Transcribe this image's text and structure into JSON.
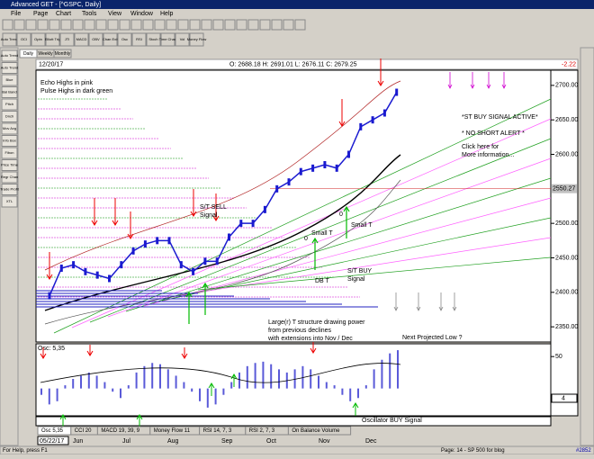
{
  "window": {
    "title": "Advanced GET - [^GSPC, Daily]"
  },
  "menu": [
    "File",
    "Page",
    "Chart",
    "Tools",
    "View",
    "Window",
    "Help"
  ],
  "toolbar": [
    "Auto Trend",
    "OCI",
    "Optn",
    "Elliott Trig",
    "JTI",
    "MACD",
    "OBV",
    "Chan Exit",
    "Osc",
    "RSI",
    "Stoch",
    "Time Chart",
    "Vol",
    "Money Flow"
  ],
  "palette": [
    "Auto Trend",
    "Auto Trend",
    "Blue",
    "Bal Band",
    "Pitch",
    "Dnch",
    "Mov Avg",
    "Info Box",
    "Fibon",
    "Price Time",
    "Regr Chan",
    "Trade Profit",
    "XTL"
  ],
  "period_tabs": [
    "Daily",
    "Weekly",
    "Monthly"
  ],
  "info": {
    "date": "12/20/17",
    "ohlc": "O: 2688.18   H: 2691.01   L: 2676.11   C: 2679.25",
    "change": "-2.22"
  },
  "chart_data": {
    "type": "line",
    "color": "#1a1ad0",
    "values": [
      2395,
      2435,
      2440,
      2430,
      2425,
      2420,
      2440,
      2460,
      2470,
      2475,
      2475,
      2440,
      2430,
      2445,
      2445,
      2480,
      2500,
      2500,
      2520,
      2550,
      2560,
      2575,
      2580,
      2585,
      2580,
      2600,
      2640,
      2650,
      2660,
      2690
    ],
    "ylim": [
      2328,
      2722
    ],
    "yticks": [
      {
        "value": 2700,
        "label": "2700.00"
      },
      {
        "value": 2650,
        "label": "2650.00"
      },
      {
        "value": 2600,
        "label": "2600.00"
      },
      {
        "value": 2500,
        "label": "2500.00"
      },
      {
        "value": 2450,
        "label": "2450.00"
      },
      {
        "value": 2400,
        "label": "2400.00"
      },
      {
        "value": 2350,
        "label": "2350.00"
      }
    ],
    "highlight": {
      "value": 2550.27,
      "label": "2550.27"
    },
    "date_labels": [
      "05/22/17",
      "Jun",
      "Jul",
      "Aug",
      "Sep",
      "Oct",
      "Nov",
      "Dec"
    ],
    "annotations": [
      "Echo Highs in pink",
      "Pulse Highs in dark green",
      "*ST BUY SIGNAL ACTIVE*",
      "* NO SHORT ALERT *",
      "Click here for",
      "More information...",
      "S/T SELL",
      "Signal",
      "Small T",
      "Small T",
      "0",
      "0",
      "DB T",
      "S/T BUY",
      "Signal",
      "Large(r) T structure drawing power",
      "from previous declines",
      "with extensions into Nov / Dec",
      "Next Projected Low ?",
      "Oscillator BUY Signal"
    ]
  },
  "oscillator": {
    "label": "Osc: 5,35",
    "ylim": [
      -40,
      70
    ],
    "yticks": [
      50
    ],
    "readout": 4,
    "color": "#5a5ad8",
    "values": [
      -10,
      -25,
      -20,
      5,
      15,
      20,
      25,
      20,
      10,
      -5,
      -15,
      5,
      25,
      35,
      40,
      38,
      30,
      20,
      10,
      -5,
      -20,
      -30,
      -25,
      -10,
      10,
      25,
      35,
      40,
      42,
      38,
      30,
      25,
      30,
      35,
      30,
      20,
      10,
      5,
      -10,
      -20,
      -15,
      5,
      30,
      45,
      55,
      60
    ]
  },
  "indicator_tabs": [
    "Osc 5,35",
    "CCI 20",
    "MACD 19, 39, 9",
    "Money Flow 11",
    "RSI 14, 7, 3",
    "RSI 2, 7, 3",
    "On Balance Volume"
  ],
  "status": {
    "help": "For Help, press F1",
    "page": "Page: 14 - SP 500 for blog",
    "count": "#2852"
  }
}
